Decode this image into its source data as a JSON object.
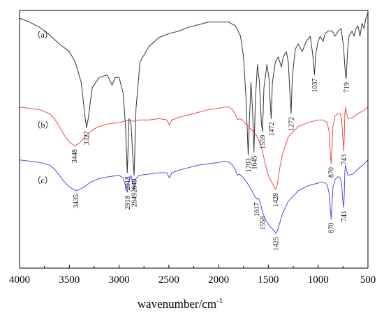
{
  "chart_data": {
    "type": "line",
    "title": "",
    "xlabel": "wavenumber/cm",
    "xlabel_superscript": "-1",
    "ylabel": "",
    "xlim": [
      4000,
      500
    ],
    "x_reversed": true,
    "xticks": [
      4000,
      3500,
      3000,
      2500,
      2000,
      1500,
      1000,
      500
    ],
    "xtick_labels": [
      "4000",
      "3500",
      "3000",
      "2500",
      "2000",
      "1500",
      "1000",
      "500"
    ],
    "y_scale": "arbitrary (stacked transmittance)",
    "grid": false,
    "series": [
      {
        "name": "(a)",
        "color": "#333333",
        "points": [
          [
            4000,
            0.97
          ],
          [
            3900,
            0.955
          ],
          [
            3800,
            0.935
          ],
          [
            3700,
            0.905
          ],
          [
            3600,
            0.87
          ],
          [
            3500,
            0.84
          ],
          [
            3440,
            0.8
          ],
          [
            3380,
            0.72
          ],
          [
            3340,
            0.58
          ],
          [
            3327,
            0.545
          ],
          [
            3310,
            0.58
          ],
          [
            3270,
            0.7
          ],
          [
            3200,
            0.74
          ],
          [
            3120,
            0.75
          ],
          [
            3070,
            0.71
          ],
          [
            3040,
            0.74
          ],
          [
            3000,
            0.74
          ],
          [
            2960,
            0.68
          ],
          [
            2935,
            0.55
          ],
          [
            2918,
            0.37
          ],
          [
            2900,
            0.58
          ],
          [
            2880,
            0.56
          ],
          [
            2865,
            0.45
          ],
          [
            2849,
            0.36
          ],
          [
            2830,
            0.62
          ],
          [
            2790,
            0.8
          ],
          [
            2700,
            0.86
          ],
          [
            2600,
            0.895
          ],
          [
            2500,
            0.91
          ],
          [
            2400,
            0.92
          ],
          [
            2300,
            0.935
          ],
          [
            2200,
            0.945
          ],
          [
            2100,
            0.955
          ],
          [
            2000,
            0.955
          ],
          [
            1900,
            0.955
          ],
          [
            1830,
            0.94
          ],
          [
            1780,
            0.9
          ],
          [
            1750,
            0.82
          ],
          [
            1725,
            0.66
          ],
          [
            1703,
            0.44
          ],
          [
            1690,
            0.58
          ],
          [
            1675,
            0.72
          ],
          [
            1660,
            0.62
          ],
          [
            1645,
            0.45
          ],
          [
            1630,
            0.66
          ],
          [
            1610,
            0.79
          ],
          [
            1590,
            0.72
          ],
          [
            1570,
            0.56
          ],
          [
            1559,
            0.53
          ],
          [
            1545,
            0.7
          ],
          [
            1515,
            0.79
          ],
          [
            1495,
            0.74
          ],
          [
            1480,
            0.63
          ],
          [
            1472,
            0.58
          ],
          [
            1460,
            0.72
          ],
          [
            1430,
            0.8
          ],
          [
            1400,
            0.82
          ],
          [
            1370,
            0.78
          ],
          [
            1350,
            0.82
          ],
          [
            1320,
            0.84
          ],
          [
            1300,
            0.8
          ],
          [
            1283,
            0.67
          ],
          [
            1272,
            0.6
          ],
          [
            1260,
            0.74
          ],
          [
            1230,
            0.85
          ],
          [
            1200,
            0.87
          ],
          [
            1160,
            0.84
          ],
          [
            1120,
            0.88
          ],
          [
            1080,
            0.9
          ],
          [
            1055,
            0.83
          ],
          [
            1037,
            0.75
          ],
          [
            1025,
            0.83
          ],
          [
            1000,
            0.88
          ],
          [
            980,
            0.9
          ],
          [
            950,
            0.88
          ],
          [
            930,
            0.91
          ],
          [
            900,
            0.92
          ],
          [
            860,
            0.92
          ],
          [
            830,
            0.9
          ],
          [
            800,
            0.92
          ],
          [
            770,
            0.93
          ],
          [
            745,
            0.86
          ],
          [
            730,
            0.77
          ],
          [
            719,
            0.735
          ],
          [
            705,
            0.84
          ],
          [
            690,
            0.9
          ],
          [
            660,
            0.92
          ],
          [
            640,
            0.9
          ],
          [
            620,
            0.93
          ],
          [
            600,
            0.94
          ],
          [
            580,
            0.9
          ],
          [
            560,
            0.95
          ],
          [
            540,
            0.93
          ],
          [
            520,
            0.97
          ],
          [
            500,
            0.99
          ]
        ]
      },
      {
        "name": "(b)",
        "color": "#f04a4a",
        "points": [
          [
            4000,
            0.625
          ],
          [
            3900,
            0.62
          ],
          [
            3800,
            0.615
          ],
          [
            3700,
            0.6
          ],
          [
            3650,
            0.58
          ],
          [
            3600,
            0.55
          ],
          [
            3550,
            0.515
          ],
          [
            3500,
            0.49
          ],
          [
            3448,
            0.475
          ],
          [
            3400,
            0.485
          ],
          [
            3350,
            0.505
          ],
          [
            3300,
            0.525
          ],
          [
            3250,
            0.54
          ],
          [
            3200,
            0.55
          ],
          [
            3100,
            0.56
          ],
          [
            3000,
            0.565
          ],
          [
            2950,
            0.57
          ],
          [
            2900,
            0.575
          ],
          [
            2850,
            0.57
          ],
          [
            2800,
            0.575
          ],
          [
            2700,
            0.575
          ],
          [
            2600,
            0.58
          ],
          [
            2520,
            0.575
          ],
          [
            2495,
            0.555
          ],
          [
            2470,
            0.575
          ],
          [
            2400,
            0.585
          ],
          [
            2300,
            0.595
          ],
          [
            2200,
            0.605
          ],
          [
            2100,
            0.615
          ],
          [
            2000,
            0.62
          ],
          [
            1950,
            0.625
          ],
          [
            1900,
            0.625
          ],
          [
            1860,
            0.615
          ],
          [
            1830,
            0.595
          ],
          [
            1810,
            0.575
          ],
          [
            1790,
            0.58
          ],
          [
            1760,
            0.575
          ],
          [
            1730,
            0.56
          ],
          [
            1700,
            0.55
          ],
          [
            1680,
            0.54
          ],
          [
            1650,
            0.53
          ],
          [
            1620,
            0.515
          ],
          [
            1590,
            0.49
          ],
          [
            1560,
            0.455
          ],
          [
            1530,
            0.4
          ],
          [
            1500,
            0.36
          ],
          [
            1470,
            0.335
          ],
          [
            1448,
            0.32
          ],
          [
            1428,
            0.305
          ],
          [
            1410,
            0.325
          ],
          [
            1390,
            0.38
          ],
          [
            1360,
            0.44
          ],
          [
            1300,
            0.51
          ],
          [
            1200,
            0.55
          ],
          [
            1100,
            0.565
          ],
          [
            1000,
            0.575
          ],
          [
            950,
            0.575
          ],
          [
            910,
            0.565
          ],
          [
            890,
            0.53
          ],
          [
            880,
            0.46
          ],
          [
            870,
            0.405
          ],
          [
            862,
            0.46
          ],
          [
            852,
            0.55
          ],
          [
            830,
            0.59
          ],
          [
            800,
            0.6
          ],
          [
            780,
            0.6
          ],
          [
            765,
            0.58
          ],
          [
            755,
            0.52
          ],
          [
            743,
            0.455
          ],
          [
            737,
            0.52
          ],
          [
            732,
            0.6
          ],
          [
            725,
            0.625
          ],
          [
            715,
            0.6
          ],
          [
            700,
            0.58
          ],
          [
            650,
            0.585
          ],
          [
            600,
            0.6
          ],
          [
            550,
            0.61
          ],
          [
            500,
            0.625
          ]
        ]
      },
      {
        "name": "(c)",
        "color": "#4a4ae6",
        "points": [
          [
            4000,
            0.42
          ],
          [
            3900,
            0.415
          ],
          [
            3800,
            0.41
          ],
          [
            3700,
            0.4
          ],
          [
            3650,
            0.385
          ],
          [
            3600,
            0.36
          ],
          [
            3550,
            0.335
          ],
          [
            3500,
            0.315
          ],
          [
            3450,
            0.305
          ],
          [
            3435,
            0.3
          ],
          [
            3400,
            0.305
          ],
          [
            3350,
            0.315
          ],
          [
            3300,
            0.33
          ],
          [
            3250,
            0.34
          ],
          [
            3200,
            0.348
          ],
          [
            3100,
            0.355
          ],
          [
            3000,
            0.36
          ],
          [
            2960,
            0.35
          ],
          [
            2935,
            0.32
          ],
          [
            2918,
            0.295
          ],
          [
            2905,
            0.33
          ],
          [
            2880,
            0.36
          ],
          [
            2865,
            0.335
          ],
          [
            2849,
            0.305
          ],
          [
            2835,
            0.345
          ],
          [
            2800,
            0.36
          ],
          [
            2700,
            0.365
          ],
          [
            2600,
            0.37
          ],
          [
            2520,
            0.37
          ],
          [
            2495,
            0.35
          ],
          [
            2470,
            0.37
          ],
          [
            2400,
            0.38
          ],
          [
            2300,
            0.39
          ],
          [
            2200,
            0.4
          ],
          [
            2100,
            0.405
          ],
          [
            2000,
            0.41
          ],
          [
            1950,
            0.415
          ],
          [
            1900,
            0.412
          ],
          [
            1860,
            0.4
          ],
          [
            1830,
            0.38
          ],
          [
            1810,
            0.36
          ],
          [
            1790,
            0.365
          ],
          [
            1760,
            0.355
          ],
          [
            1720,
            0.335
          ],
          [
            1680,
            0.31
          ],
          [
            1640,
            0.28
          ],
          [
            1617,
            0.268
          ],
          [
            1600,
            0.27
          ],
          [
            1585,
            0.26
          ],
          [
            1558,
            0.215
          ],
          [
            1530,
            0.19
          ],
          [
            1500,
            0.17
          ],
          [
            1470,
            0.155
          ],
          [
            1440,
            0.145
          ],
          [
            1425,
            0.135
          ],
          [
            1410,
            0.145
          ],
          [
            1390,
            0.17
          ],
          [
            1360,
            0.21
          ],
          [
            1300,
            0.26
          ],
          [
            1200,
            0.3
          ],
          [
            1100,
            0.32
          ],
          [
            1000,
            0.33
          ],
          [
            950,
            0.335
          ],
          [
            910,
            0.325
          ],
          [
            890,
            0.29
          ],
          [
            880,
            0.24
          ],
          [
            870,
            0.19
          ],
          [
            862,
            0.24
          ],
          [
            852,
            0.31
          ],
          [
            830,
            0.345
          ],
          [
            800,
            0.355
          ],
          [
            780,
            0.35
          ],
          [
            765,
            0.33
          ],
          [
            755,
            0.27
          ],
          [
            743,
            0.235
          ],
          [
            737,
            0.3
          ],
          [
            732,
            0.375
          ],
          [
            725,
            0.4
          ],
          [
            715,
            0.38
          ],
          [
            700,
            0.36
          ],
          [
            650,
            0.365
          ],
          [
            600,
            0.385
          ],
          [
            550,
            0.4
          ],
          [
            500,
            0.42
          ]
        ]
      }
    ],
    "series_labels": [
      {
        "series": 0,
        "text": "（a）",
        "x": 3870,
        "y": 0.895
      },
      {
        "series": 1,
        "text": "（b）",
        "x": 3870,
        "y": 0.545
      },
      {
        "series": 2,
        "text": "（c）",
        "x": 3870,
        "y": 0.33
      }
    ],
    "peak_labels": [
      {
        "series": 0,
        "wavenumber": 3327,
        "text": "3327"
      },
      {
        "series": 0,
        "wavenumber": 2918,
        "text": "2918"
      },
      {
        "series": 0,
        "wavenumber": 2849,
        "text": "2849"
      },
      {
        "series": 0,
        "wavenumber": 1703,
        "text": "1703"
      },
      {
        "series": 0,
        "wavenumber": 1645,
        "text": "1645"
      },
      {
        "series": 0,
        "wavenumber": 1559,
        "text": "1559"
      },
      {
        "series": 0,
        "wavenumber": 1472,
        "text": "1472"
      },
      {
        "series": 0,
        "wavenumber": 1272,
        "text": "1272"
      },
      {
        "series": 0,
        "wavenumber": 1037,
        "text": "1037"
      },
      {
        "series": 0,
        "wavenumber": 719,
        "text": "719"
      },
      {
        "series": 1,
        "wavenumber": 3448,
        "text": "3448"
      },
      {
        "series": 1,
        "wavenumber": 1428,
        "text": "1428"
      },
      {
        "series": 1,
        "wavenumber": 870,
        "text": "870"
      },
      {
        "series": 1,
        "wavenumber": 743,
        "text": "743"
      },
      {
        "series": 2,
        "wavenumber": 3435,
        "text": "3435"
      },
      {
        "series": 2,
        "wavenumber": 2918,
        "text": "2918"
      },
      {
        "series": 2,
        "wavenumber": 2849,
        "text": "2849"
      },
      {
        "series": 2,
        "wavenumber": 1617,
        "text": "1617"
      },
      {
        "series": 2,
        "wavenumber": 1558,
        "text": "1558"
      },
      {
        "series": 2,
        "wavenumber": 1425,
        "text": "1425"
      },
      {
        "series": 2,
        "wavenumber": 870,
        "text": "870"
      },
      {
        "series": 2,
        "wavenumber": 743,
        "text": "743"
      }
    ]
  }
}
